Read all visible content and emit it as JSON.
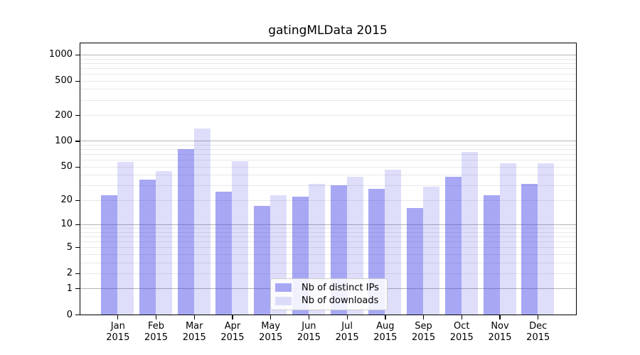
{
  "title": "gatingMLData 2015",
  "chart_data": {
    "type": "bar",
    "categories": [
      {
        "month": "Jan",
        "year": "2015"
      },
      {
        "month": "Feb",
        "year": "2015"
      },
      {
        "month": "Mar",
        "year": "2015"
      },
      {
        "month": "Apr",
        "year": "2015"
      },
      {
        "month": "May",
        "year": "2015"
      },
      {
        "month": "Jun",
        "year": "2015"
      },
      {
        "month": "Jul",
        "year": "2015"
      },
      {
        "month": "Aug",
        "year": "2015"
      },
      {
        "month": "Sep",
        "year": "2015"
      },
      {
        "month": "Oct",
        "year": "2015"
      },
      {
        "month": "Nov",
        "year": "2015"
      },
      {
        "month": "Dec",
        "year": "2015"
      }
    ],
    "series": [
      {
        "name": "Nb of distinct IPs",
        "values": [
          23,
          35,
          80,
          25,
          17,
          22,
          30,
          27,
          16,
          38,
          23,
          31
        ],
        "fill": "rgba(60,60,230,0.45)",
        "swatch": "#a7a7f4"
      },
      {
        "name": "Nb of downloads",
        "values": [
          57,
          44,
          140,
          58,
          23,
          31,
          38,
          46,
          29,
          74,
          55,
          55
        ],
        "fill": "rgba(60,60,230,0.17)",
        "swatch": "#dcdcfa"
      }
    ],
    "yticks": [
      {
        "label": "0",
        "value": 0
      },
      {
        "label": "1",
        "value": 1
      },
      {
        "label": "2",
        "value": 2
      },
      {
        "label": "5",
        "value": 5
      },
      {
        "label": "10",
        "value": 10
      },
      {
        "label": "20",
        "value": 20
      },
      {
        "label": "50",
        "value": 50
      },
      {
        "label": "100",
        "value": 100
      },
      {
        "label": "200",
        "value": 200
      },
      {
        "label": "500",
        "value": 500
      },
      {
        "label": "1000",
        "value": 1000
      }
    ],
    "scale": "log1p",
    "ylim": [
      0,
      1400
    ],
    "xlabel": "",
    "ylabel": "",
    "grid": "on",
    "legend_position": "lower center"
  },
  "grid_colors": {
    "major": "#b4b4b4",
    "minor": "#e8e8e8"
  },
  "legend": {
    "items": [
      {
        "label": "Nb of distinct IPs"
      },
      {
        "label": "Nb of downloads"
      }
    ]
  }
}
